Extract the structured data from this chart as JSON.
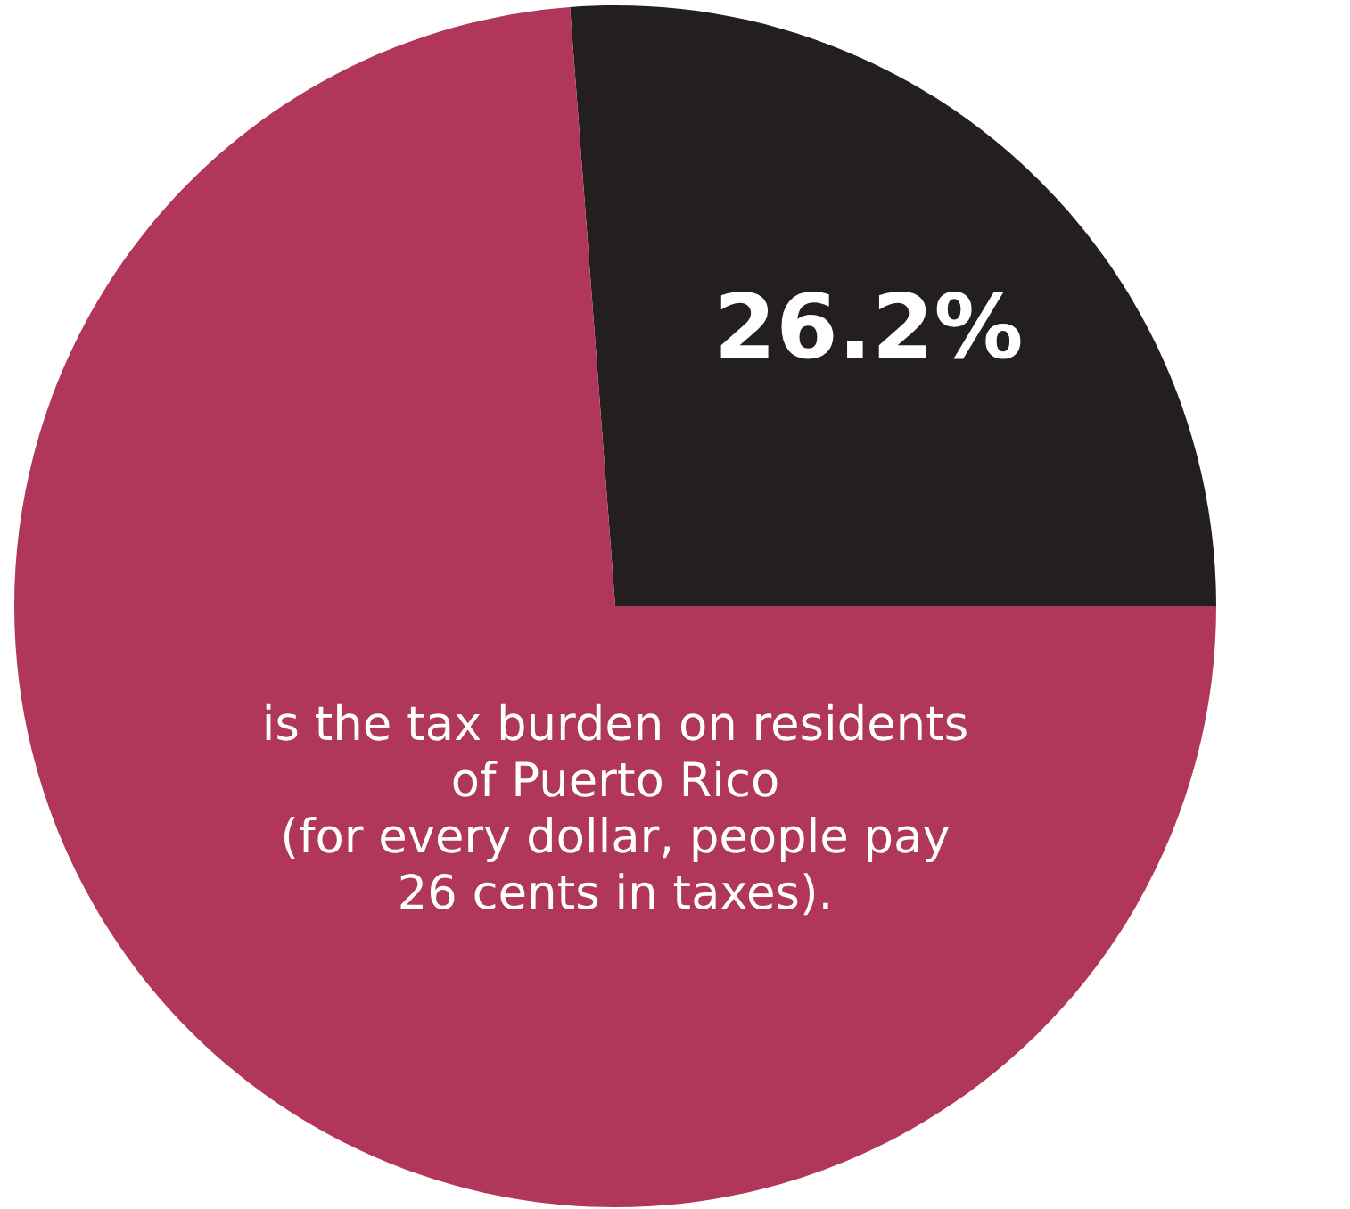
{
  "chart_data": {
    "type": "pie",
    "categories": [
      null,
      null
    ],
    "values": [
      26.2,
      73.8
    ],
    "colors": [
      "#231f20",
      "#b0375a"
    ],
    "data_labels": true,
    "value_labels": [
      "26.2%",
      null
    ],
    "annotations": [
      "is the tax burden on residents\nof Puerto Rico\n(for every dollar, people pay\n26 cents in taxes)."
    ]
  }
}
